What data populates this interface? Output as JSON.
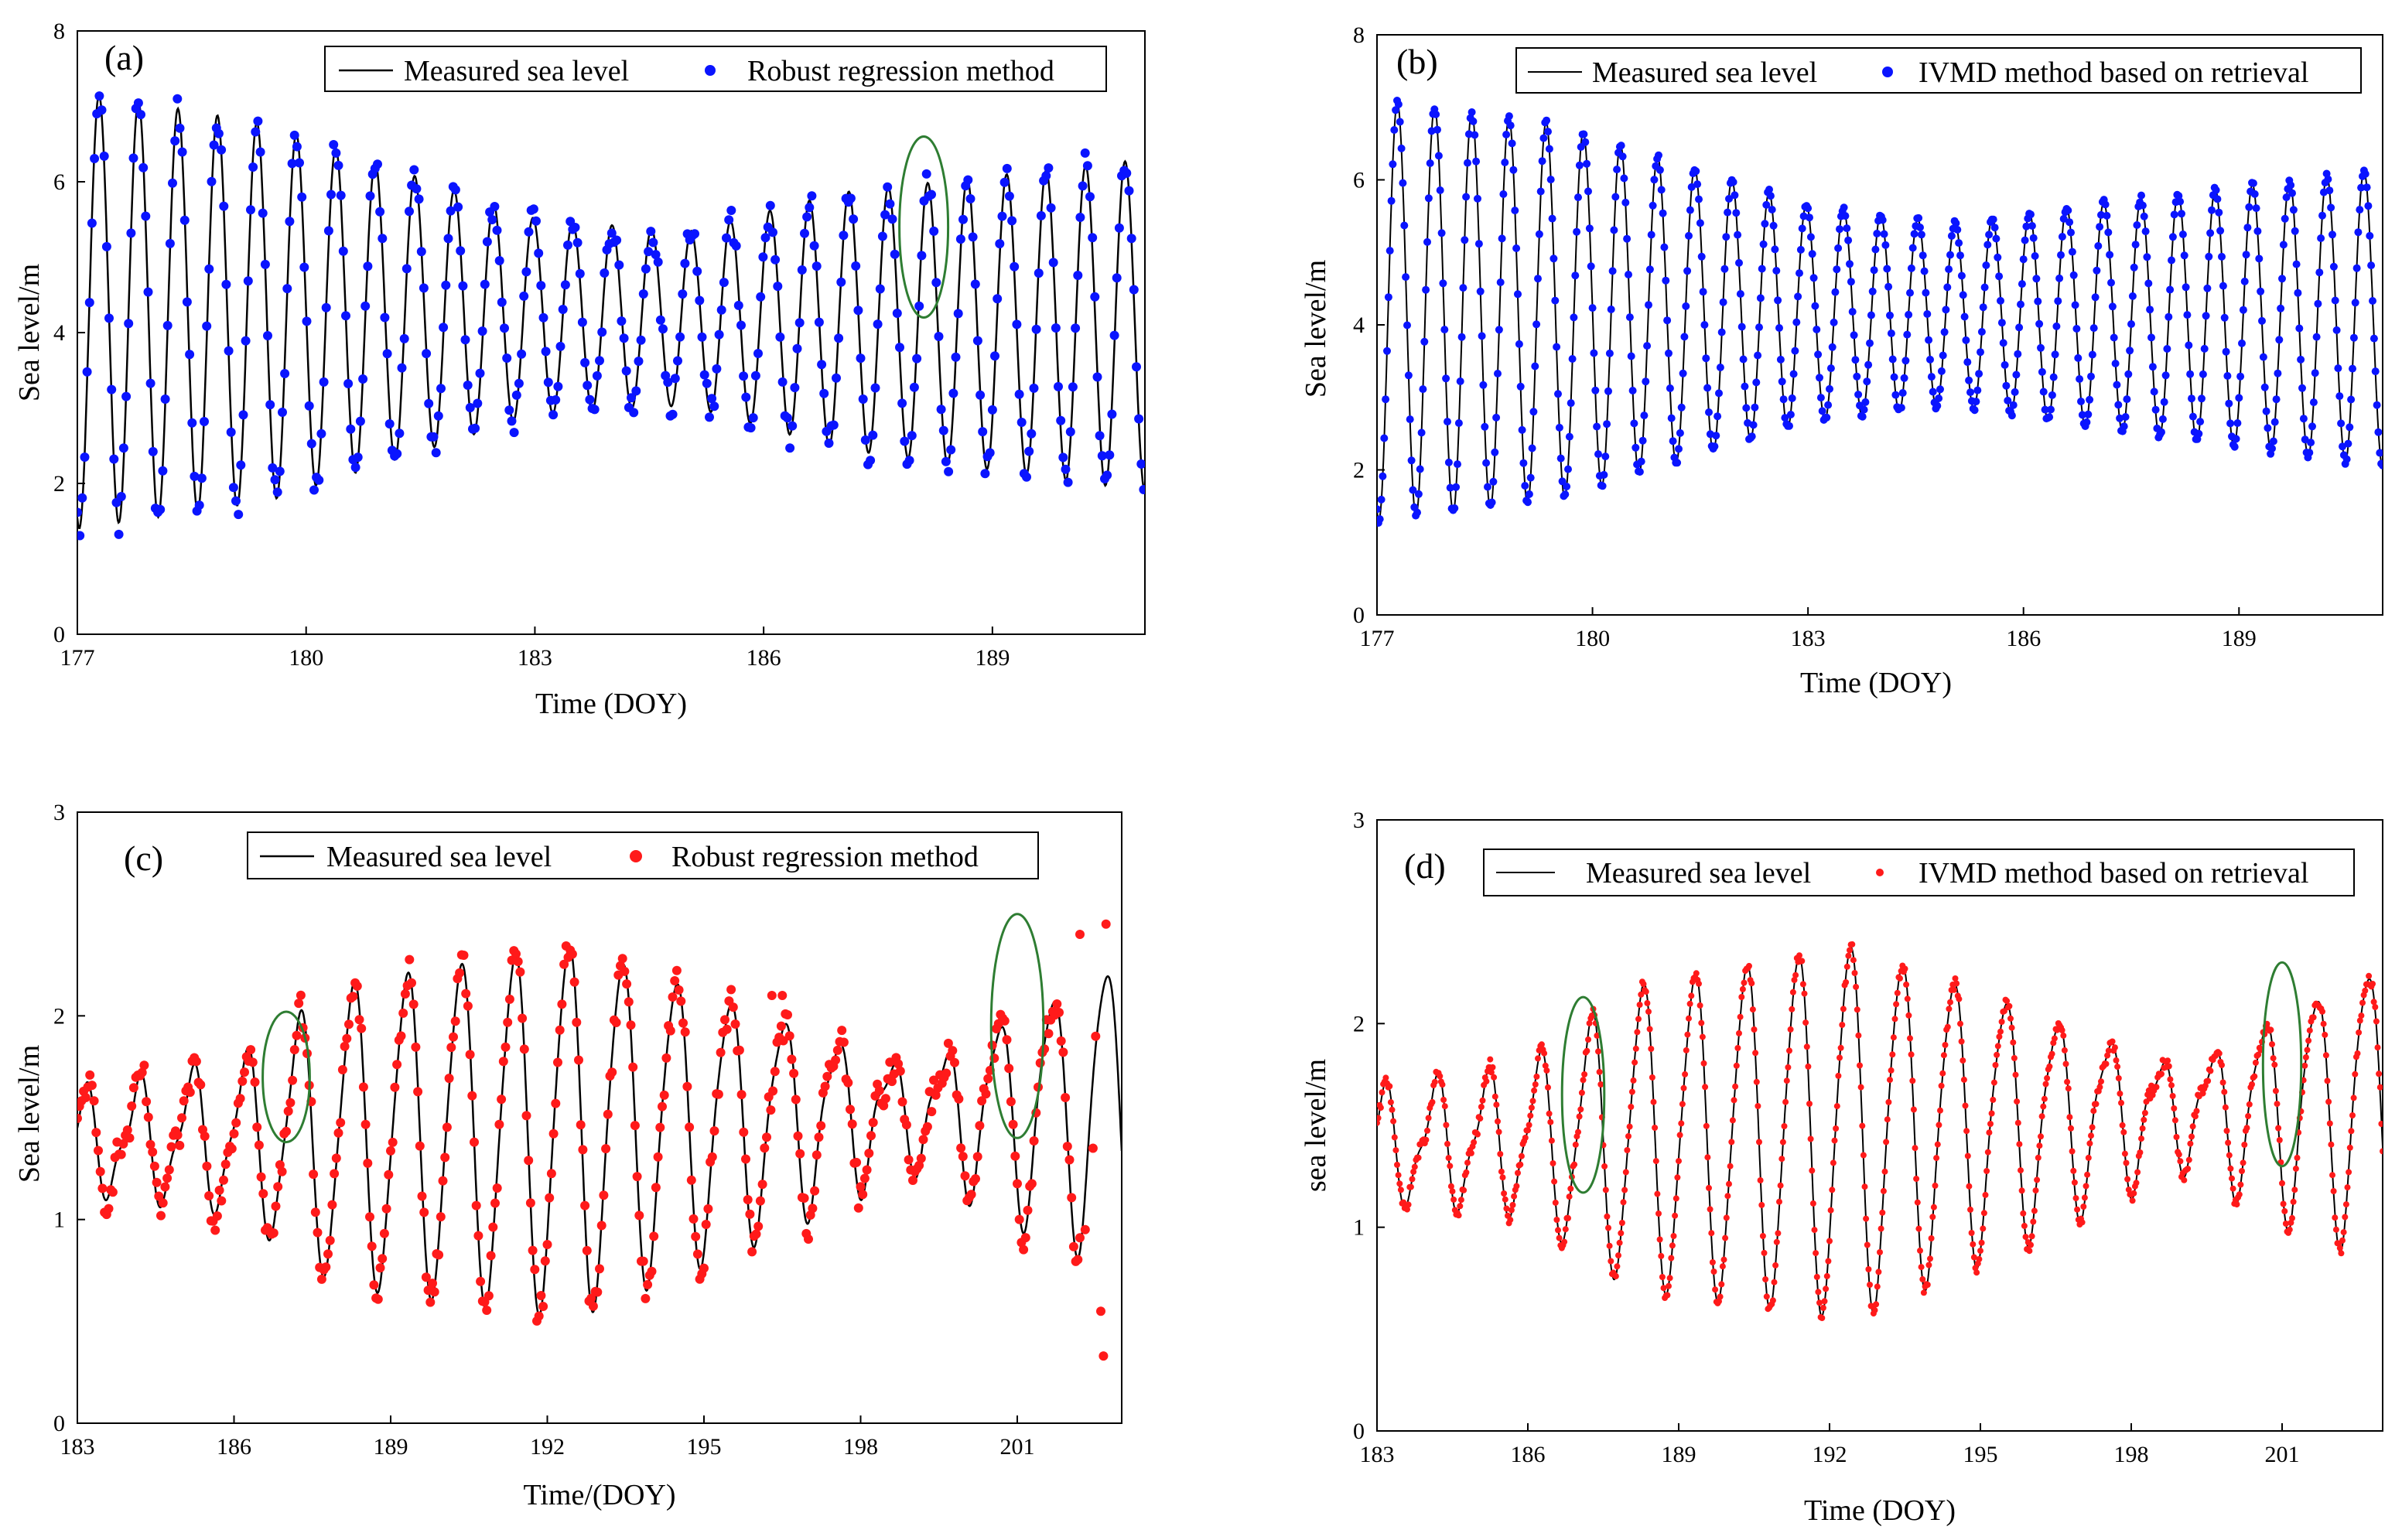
{
  "figure": {
    "colors": {
      "measured_line": "#000000",
      "blue_points": "#0a14ff",
      "red_points": "#ff1a1a",
      "ellipse": "#2e7d32",
      "axes": "#000000"
    }
  },
  "chart_data": [
    {
      "panel": "(a)",
      "type": "line",
      "title": "",
      "xlabel": "Time (DOY)",
      "ylabel": "Sea level/m",
      "xlim": [
        177,
        191
      ],
      "ylim": [
        0,
        8
      ],
      "xticks": [
        177,
        180,
        183,
        186,
        189
      ],
      "yticks": [
        0,
        2,
        4,
        6,
        8
      ],
      "legend_position": "top-right",
      "series": [
        {
          "name": "Measured sea level",
          "style": "line",
          "color": "#000000"
        },
        {
          "name": "Robust regression method",
          "style": "points",
          "color": "#0a14ff"
        }
      ],
      "model": {
        "kind": "semidiurnal",
        "start_day": 177,
        "end_day": 191,
        "period_days": 0.5175,
        "phase_days": 0.17,
        "mean_start": 4.3,
        "mean_end": 4.1,
        "amplitude_points": [
          [
            177,
            2.9
          ],
          [
            179.5,
            2.5
          ],
          [
            183,
            1.3
          ],
          [
            185,
            1.15
          ],
          [
            187,
            1.7
          ],
          [
            189,
            1.95
          ],
          [
            191,
            2.2
          ]
        ],
        "point_noise": 0.18,
        "point_step_days": 0.032,
        "point_radius": 6
      },
      "annotations": [
        {
          "type": "ellipse",
          "center": [
            188.1,
            5.4
          ],
          "radius_days": 0.32,
          "radius_value": 1.2
        }
      ]
    },
    {
      "panel": "(b)",
      "type": "line",
      "title": "",
      "xlabel": "Time (DOY)",
      "ylabel": "Sea level/m",
      "xlim": [
        177,
        191
      ],
      "ylim": [
        0,
        8
      ],
      "xticks": [
        177,
        180,
        183,
        186,
        189
      ],
      "yticks": [
        0,
        2,
        4,
        6,
        8
      ],
      "legend_position": "top-right",
      "series": [
        {
          "name": "Measured sea level",
          "style": "line",
          "color": "#000000"
        },
        {
          "name": "IVMD method based on retrieval",
          "style": "points",
          "color": "#0a14ff"
        }
      ],
      "model": {
        "kind": "semidiurnal",
        "start_day": 177,
        "end_day": 191,
        "period_days": 0.5175,
        "phase_days": 0.17,
        "mean_start": 4.2,
        "mean_end": 4.1,
        "amplitude_points": [
          [
            177,
            2.9
          ],
          [
            179.5,
            2.6
          ],
          [
            183,
            1.5
          ],
          [
            185,
            1.25
          ],
          [
            187,
            1.55
          ],
          [
            189,
            1.8
          ],
          [
            191,
            2.05
          ]
        ],
        "point_noise": 0.04,
        "point_step_days": 0.02,
        "point_radius": 5
      },
      "annotations": []
    },
    {
      "panel": "(c)",
      "type": "line",
      "title": "",
      "xlabel": "Time/(DOY)",
      "ylabel": "Sea level/m",
      "xlim": [
        183,
        203
      ],
      "ylim": [
        0,
        3
      ],
      "xticks": [
        183,
        186,
        189,
        192,
        195,
        198,
        201
      ],
      "yticks": [
        0,
        1,
        2,
        3
      ],
      "legend_position": "top-center",
      "series": [
        {
          "name": "Measured sea level",
          "style": "line",
          "color": "#000000"
        },
        {
          "name": "Robust regression method",
          "style": "points",
          "color": "#ff1a1a"
        }
      ],
      "model": {
        "kind": "mixed",
        "start_day": 183,
        "end_day": 203,
        "period_days": 1.03,
        "phase_days": 0.55,
        "mean_start": 1.38,
        "mean_end": 1.55,
        "amplitude_points": [
          [
            183,
            0.22
          ],
          [
            186,
            0.35
          ],
          [
            188,
            0.72
          ],
          [
            192.5,
            0.9
          ],
          [
            196,
            0.55
          ],
          [
            199,
            0.22
          ],
          [
            201,
            0.5
          ],
          [
            203,
            0.75
          ]
        ],
        "semidiurnal_amp": 0.1,
        "point_noise": 0.08,
        "point_step_days": 0.04,
        "point_radius": 6,
        "outlier_gap_after": 202.2,
        "outliers": [
          [
            202.3,
            0.95
          ],
          [
            202.45,
            1.35
          ],
          [
            202.6,
            0.55
          ],
          [
            202.65,
            0.33
          ],
          [
            202.5,
            1.9
          ],
          [
            202.7,
            2.45
          ],
          [
            202.2,
            2.4
          ],
          [
            196.3,
            2.1
          ],
          [
            196.5,
            2.1
          ]
        ]
      },
      "annotations": [
        {
          "type": "ellipse",
          "center": [
            187.0,
            1.7
          ],
          "radius_days": 0.45,
          "radius_value": 0.32
        },
        {
          "type": "ellipse",
          "center": [
            201.0,
            1.95
          ],
          "radius_days": 0.5,
          "radius_value": 0.55
        }
      ]
    },
    {
      "panel": "(d)",
      "type": "line",
      "title": "",
      "xlabel": "Time (DOY)",
      "ylabel": "sea level/m",
      "xlim": [
        183,
        203
      ],
      "ylim": [
        0,
        3
      ],
      "xticks": [
        183,
        186,
        189,
        192,
        195,
        198,
        201
      ],
      "yticks": [
        0,
        1,
        2,
        3
      ],
      "legend_position": "top-right",
      "series": [
        {
          "name": "Measured sea level",
          "style": "line",
          "color": "#000000"
        },
        {
          "name": "IVMD method based on retrieval",
          "style": "points",
          "color": "#ff1a1a"
        }
      ],
      "model": {
        "kind": "mixed",
        "start_day": 183,
        "end_day": 203,
        "period_days": 1.03,
        "phase_days": 0.55,
        "mean_start": 1.4,
        "mean_end": 1.6,
        "amplitude_points": [
          [
            183,
            0.25
          ],
          [
            186,
            0.35
          ],
          [
            188,
            0.72
          ],
          [
            192.5,
            0.9
          ],
          [
            196,
            0.55
          ],
          [
            199,
            0.22
          ],
          [
            201,
            0.5
          ],
          [
            203,
            0.72
          ]
        ],
        "semidiurnal_amp": 0.1,
        "point_noise": 0.03,
        "point_step_days": 0.025,
        "point_radius": 4,
        "outlier_gap_after": 203.5,
        "outliers": []
      },
      "annotations": [
        {
          "type": "ellipse",
          "center": [
            187.1,
            1.65
          ],
          "radius_days": 0.42,
          "radius_value": 0.48
        },
        {
          "type": "ellipse",
          "center": [
            201.0,
            1.8
          ],
          "radius_days": 0.38,
          "radius_value": 0.5
        }
      ]
    }
  ]
}
